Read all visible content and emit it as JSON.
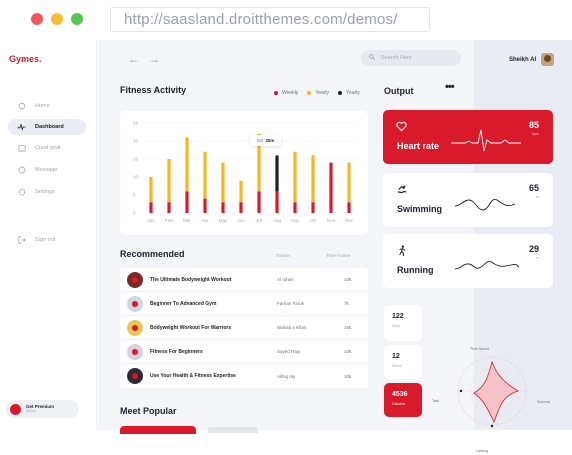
{
  "browser": {
    "url": "http://saasland.droitthemes.com/demos/"
  },
  "sidebar": {
    "logo": "Gymes.",
    "items": [
      {
        "label": "Home",
        "icon": "home-icon",
        "active": false
      },
      {
        "label": "Dashboard",
        "icon": "activity-icon",
        "active": true
      },
      {
        "label": "Creat goal",
        "icon": "calendar-icon",
        "active": false
      },
      {
        "label": "Message",
        "icon": "message-icon",
        "active": false
      },
      {
        "label": "Settings",
        "icon": "gear-icon",
        "active": false
      },
      {
        "label": "Sign out",
        "icon": "sign-out-icon",
        "active": false
      }
    ],
    "premium": {
      "title": "Get Premium",
      "subtitle": "$30/m"
    }
  },
  "header": {
    "search_placeholder": "Search Here",
    "user_name": "Sheikh Al"
  },
  "fitness": {
    "title": "Fitness Activity",
    "legend": [
      {
        "label": "Weekly",
        "color": "#d81a2b"
      },
      {
        "label": "Yearly",
        "color": "#f5b71d"
      },
      {
        "label": "Yearly",
        "color": "#1d1f2b"
      }
    ],
    "tooltip_label": "Set",
    "tooltip_value": "20m"
  },
  "chart_data": {
    "type": "bar",
    "categories": [
      "Jan",
      "Feb",
      "Mar",
      "Apr",
      "May",
      "Jun",
      "Jul",
      "Aug",
      "Sep",
      "Oct",
      "Nov",
      "Dec"
    ],
    "yticks": [
      "0",
      "5",
      "10",
      "15",
      "20",
      "25"
    ],
    "ylim": [
      0,
      25
    ],
    "series": [
      {
        "name": "Weekly",
        "values": [
          3,
          3,
          6,
          4,
          3,
          3,
          6,
          6,
          3,
          3,
          14,
          3
        ]
      },
      {
        "name": "Yearly",
        "values": [
          7,
          12,
          15,
          13,
          11,
          6,
          16,
          0,
          14,
          13,
          0,
          11
        ]
      },
      {
        "name": "Yearly",
        "values": [
          0,
          0,
          0,
          0,
          0,
          0,
          0,
          10,
          0,
          0,
          0,
          0
        ]
      }
    ],
    "grid": true
  },
  "recommended": {
    "title": "Recommended",
    "columns": [
      "Trainer",
      "Time Frame"
    ],
    "rows": [
      {
        "title": "The Ultimate Bodyweight Workout",
        "trainer": "Al rahan",
        "frame": "10k",
        "thumb": "#7a2a25"
      },
      {
        "title": "Beginner To Advanced Gym",
        "trainer": "Farhan Farok",
        "frame": "7k",
        "thumb": "#cfd6e4"
      },
      {
        "title": "Bodyweight Workout For Warriors",
        "trainer": "Wahab x Khan",
        "frame": "15k",
        "thumb": "#e8c65a"
      },
      {
        "title": "Fitness For Beginners",
        "trainer": "Sayed Raju",
        "frame": "10k",
        "thumb": "#d7d1e0"
      },
      {
        "title": "Use Your Health & Fitness Expertise",
        "trainer": "Alihiq oty",
        "frame": "10k",
        "thumb": "#2d2a35"
      }
    ]
  },
  "meet_popular": {
    "title": "Meet Popular"
  },
  "output": {
    "title": "Output",
    "metrics": [
      {
        "label": "Heart rate",
        "value": "85",
        "unit": "bpm",
        "icon": "heart-icon",
        "red": true
      },
      {
        "label": "Swimming",
        "value": "65",
        "unit": "m",
        "icon": "swimmer-icon",
        "red": false
      },
      {
        "label": "Running",
        "value": "29",
        "unit": "m",
        "icon": "runner-icon",
        "red": false
      }
    ],
    "stats": [
      {
        "value": "122",
        "label": "Days"
      },
      {
        "value": "12",
        "label": "Hours"
      },
      {
        "value": "4536",
        "label": "Calories"
      }
    ],
    "radar_labels": [
      "Time Spend",
      "Success",
      "Lacking",
      "Task"
    ]
  }
}
